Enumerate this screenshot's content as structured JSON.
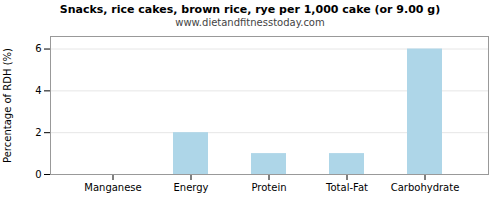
{
  "chart_data": {
    "type": "bar",
    "title": "Snacks, rice cakes, brown rice, rye per 1,000 cake (or 9.00 g)",
    "subtitle": "www.dietandfitnesstoday.com",
    "categories": [
      "Manganese",
      "Energy",
      "Protein",
      "Total-Fat",
      "Carbohydrate"
    ],
    "values": [
      0,
      2,
      1,
      1,
      6
    ],
    "color": "#aed6e8",
    "ylabel": "Percentage of RDH (%)",
    "ylim": [
      0,
      6.6
    ],
    "yticks": [
      0,
      2,
      4,
      6
    ],
    "grid": true
  }
}
